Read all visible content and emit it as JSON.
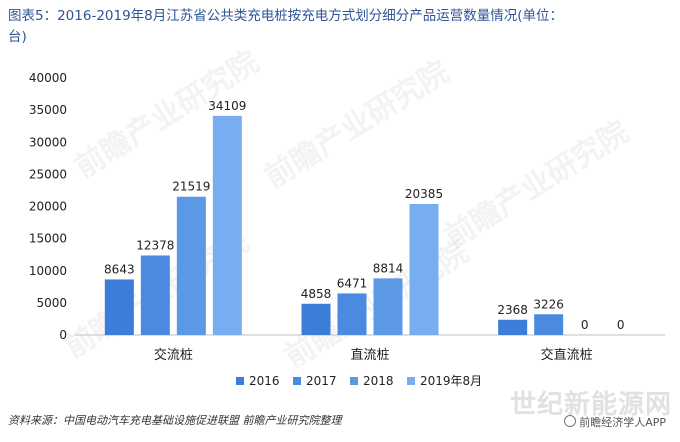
{
  "title": "图表5：2016-2019年8月江苏省公共类充电桩按充电方式划分细分产品运营数量情况(单位：台)",
  "source": "资料来源：中国电动汽车充电基础设施促进联盟 前瞻产业研究院整理",
  "brand": "前瞻经济学人APP",
  "watermark": "前瞻产业研究院",
  "site_watermark": "世纪新能源网",
  "chart_data": {
    "type": "bar",
    "categories": [
      "交流桩",
      "直流桩",
      "交直流桩"
    ],
    "series": [
      {
        "name": "2016",
        "color": "#3b7dd8",
        "values": [
          8643,
          4858,
          2368
        ]
      },
      {
        "name": "2017",
        "color": "#4a8ae0",
        "values": [
          12378,
          6471,
          3226
        ]
      },
      {
        "name": "2018",
        "color": "#5b98e6",
        "values": [
          21519,
          8814,
          0
        ]
      },
      {
        "name": "2019年8月",
        "color": "#78aef0",
        "values": [
          34109,
          20385,
          0
        ]
      }
    ],
    "ylim": [
      0,
      40000
    ],
    "yticks": [
      0,
      5000,
      10000,
      15000,
      20000,
      25000,
      30000,
      35000,
      40000
    ],
    "grid": false,
    "legend": "bottom"
  }
}
